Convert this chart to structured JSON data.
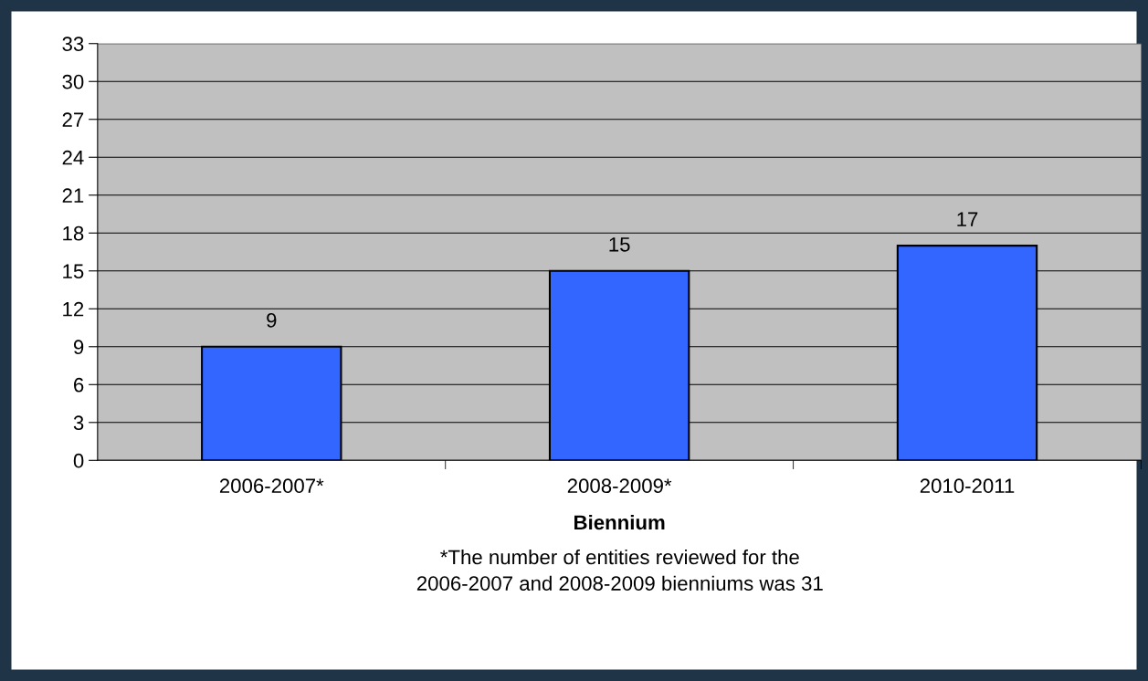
{
  "chart_data": {
    "type": "bar",
    "xlabel": "Biennium",
    "categories": [
      "2006-2007*",
      "2008-2009*",
      "2010-2011"
    ],
    "values": [
      9,
      15,
      17
    ],
    "color": "#3366ff",
    "ylim": [
      0,
      33
    ],
    "yticks": [
      0,
      3,
      6,
      9,
      12,
      15,
      18,
      21,
      24,
      27,
      30,
      33
    ],
    "grid": "y",
    "data_labels": true,
    "annotations": [
      "*The number of entities reviewed for the\n2006-2007 and 2008-2009 bienniums was 31"
    ]
  }
}
